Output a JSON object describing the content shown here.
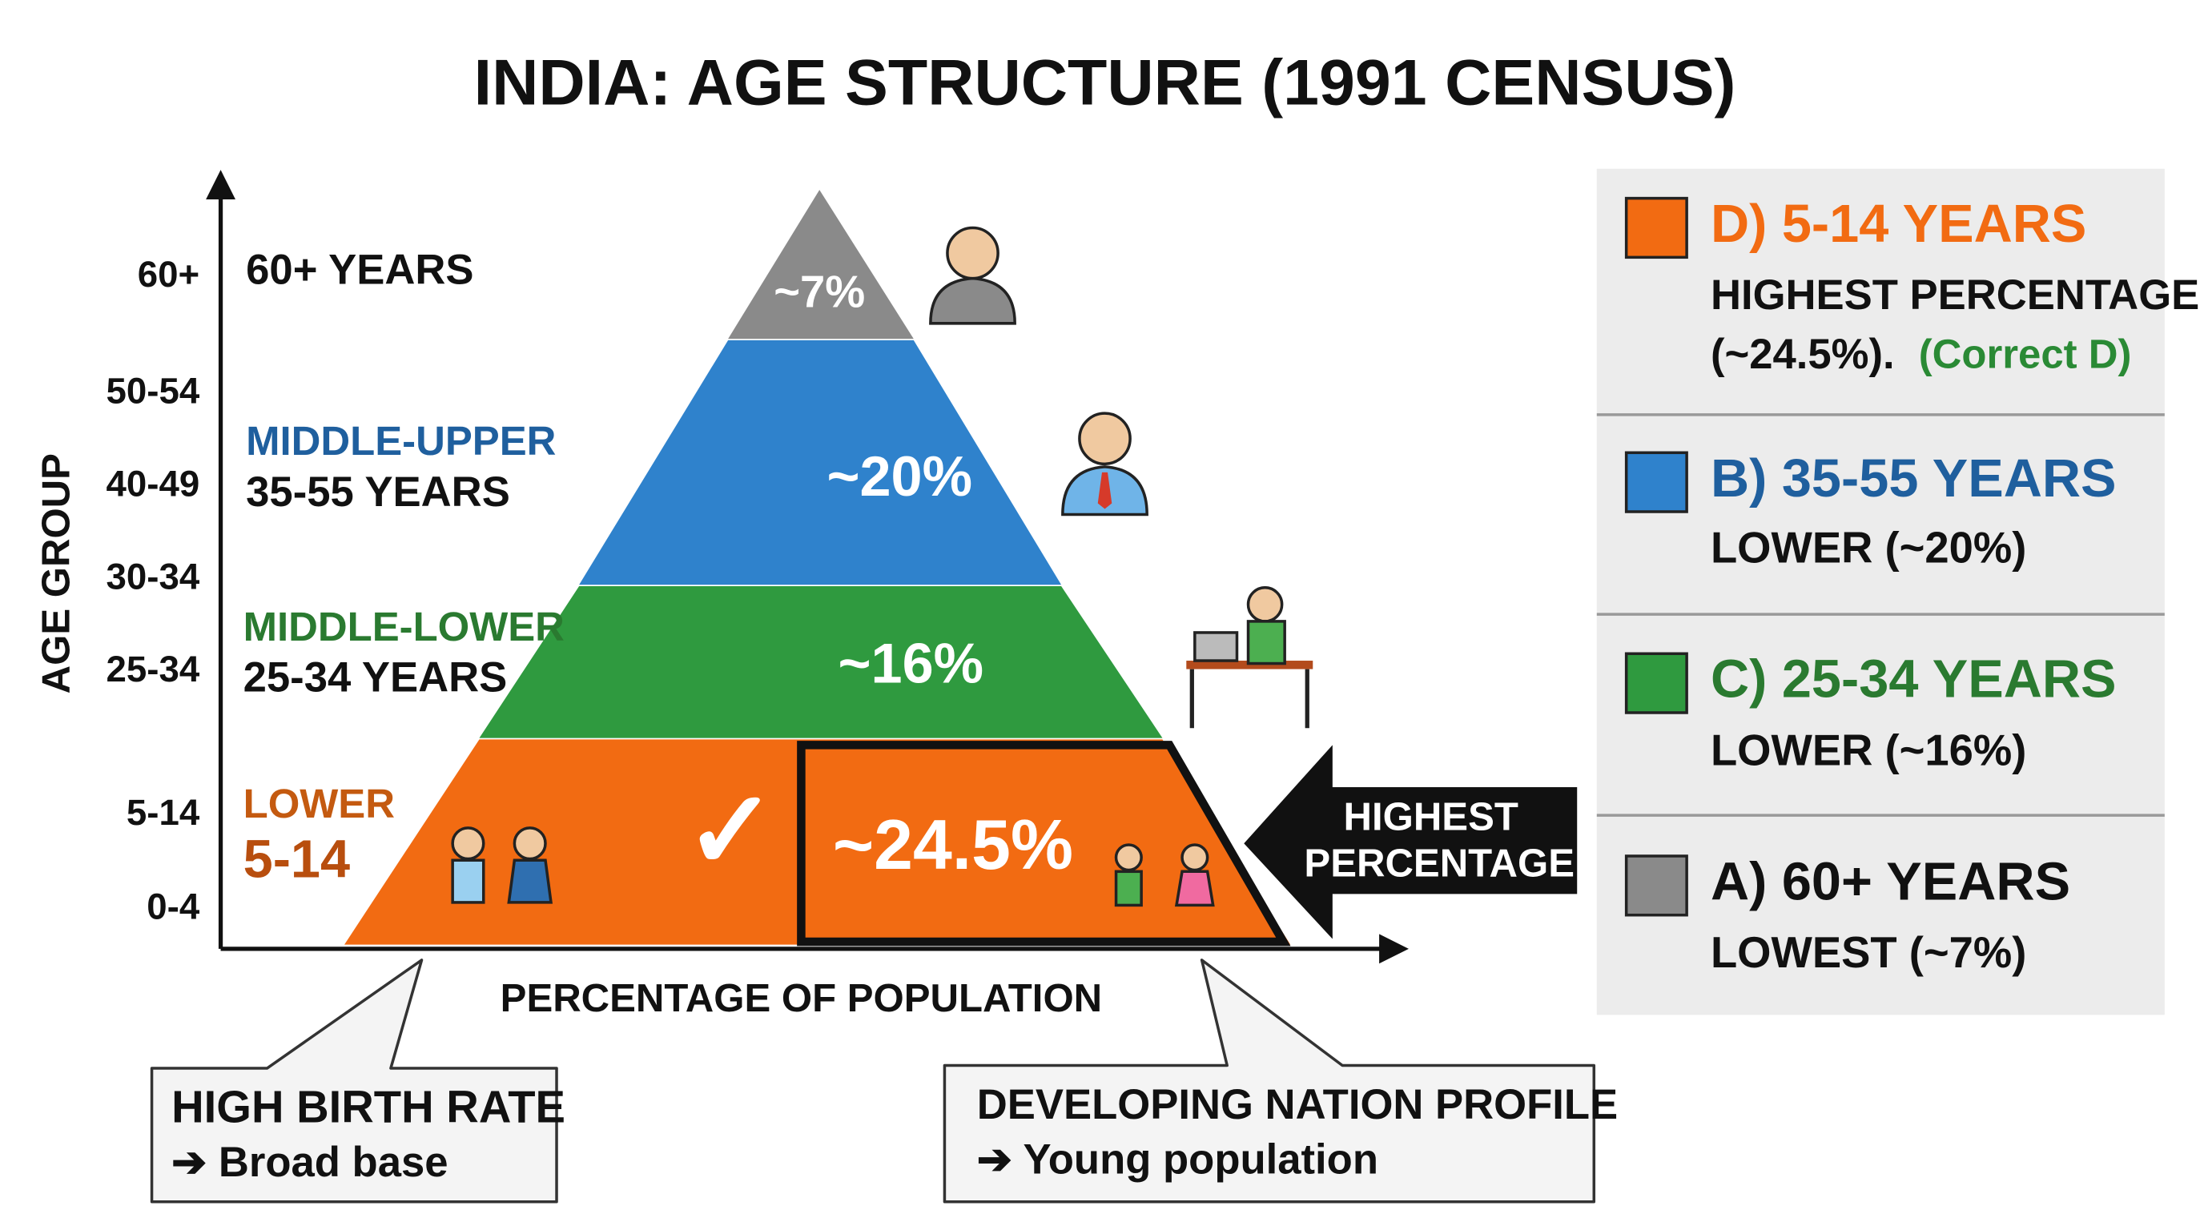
{
  "title": "INDIA: AGE STRUCTURE (1991 CENSUS)",
  "y_axis": {
    "label": "AGE GROUP",
    "ticks": [
      "60+",
      "50-54",
      "40-49",
      "30-34",
      "25-34",
      "5-14",
      "0-4"
    ]
  },
  "x_axis": {
    "label": "PERCENTAGE OF POPULATION"
  },
  "layers": [
    {
      "label": "60+ YEARS",
      "value": "~7%"
    },
    {
      "group": "MIDDLE-UPPER",
      "label": "35-55 YEARS",
      "value": "~20%"
    },
    {
      "group": "MIDDLE-LOWER",
      "label": "25-34 YEARS",
      "value": "~16%"
    },
    {
      "group": "LOWER",
      "label": "5-14",
      "value": "~24.5%",
      "mark": "✓"
    }
  ],
  "callout": {
    "lines": [
      "HIGHEST",
      "PERCENTAGE"
    ]
  },
  "notes": [
    {
      "title": "HIGH BIRTH RATE",
      "text": "➔ Broad base"
    },
    {
      "title": "DEVELOPING NATION PROFILE",
      "text": "➔ Young population"
    }
  ],
  "options": [
    {
      "title": "D) 5-14 YEARS",
      "lines": [
        "HIGHEST PERCENTAGE",
        "(~24.5%).",
        "(Correct D)"
      ]
    },
    {
      "title": "B) 35-55 YEARS",
      "lines": [
        "LOWER (~20%)"
      ]
    },
    {
      "title": "C) 25-34 YEARS",
      "lines": [
        "LOWER (~16%)"
      ]
    },
    {
      "title": "A) 60+ YEARS",
      "lines": [
        "LOWEST (~7%)"
      ]
    }
  ]
}
